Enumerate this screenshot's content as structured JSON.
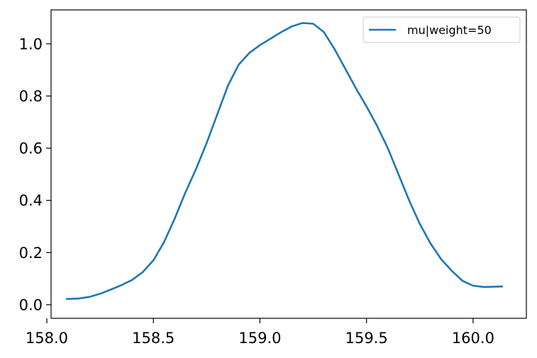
{
  "chart_data": {
    "type": "line",
    "title": "",
    "xlabel": "",
    "ylabel": "",
    "xlim": [
      158.02,
      160.25
    ],
    "ylim": [
      -0.052,
      1.13
    ],
    "grid": false,
    "legend_position": "top-right",
    "x_ticks": [
      158.0,
      158.5,
      159.0,
      159.5,
      160.0
    ],
    "x_tick_labels": [
      "158.0",
      "158.5",
      "159.0",
      "159.5",
      "160.0"
    ],
    "y_ticks": [
      0.0,
      0.2,
      0.4,
      0.6,
      0.8,
      1.0
    ],
    "y_tick_labels": [
      "0.0",
      "0.2",
      "0.4",
      "0.6",
      "0.8",
      "1.0"
    ],
    "series": [
      {
        "name": "mu|weight=50",
        "color": "#1f77b4",
        "x": [
          158.09,
          158.15,
          158.2,
          158.25,
          158.3,
          158.35,
          158.4,
          158.45,
          158.5,
          158.55,
          158.6,
          158.65,
          158.7,
          158.75,
          158.8,
          158.85,
          158.9,
          158.95,
          159.0,
          159.05,
          159.1,
          159.15,
          159.2,
          159.25,
          159.3,
          159.35,
          159.4,
          159.45,
          159.5,
          159.55,
          159.6,
          159.65,
          159.7,
          159.75,
          159.8,
          159.85,
          159.9,
          159.95,
          160.0,
          160.05,
          160.1,
          160.14
        ],
        "y": [
          0.022,
          0.024,
          0.03,
          0.042,
          0.058,
          0.075,
          0.095,
          0.125,
          0.17,
          0.24,
          0.33,
          0.43,
          0.52,
          0.62,
          0.73,
          0.84,
          0.92,
          0.965,
          0.995,
          1.02,
          1.045,
          1.067,
          1.08,
          1.077,
          1.045,
          0.98,
          0.905,
          0.83,
          0.76,
          0.685,
          0.6,
          0.5,
          0.4,
          0.31,
          0.235,
          0.175,
          0.13,
          0.092,
          0.073,
          0.068,
          0.069,
          0.07
        ]
      }
    ]
  }
}
